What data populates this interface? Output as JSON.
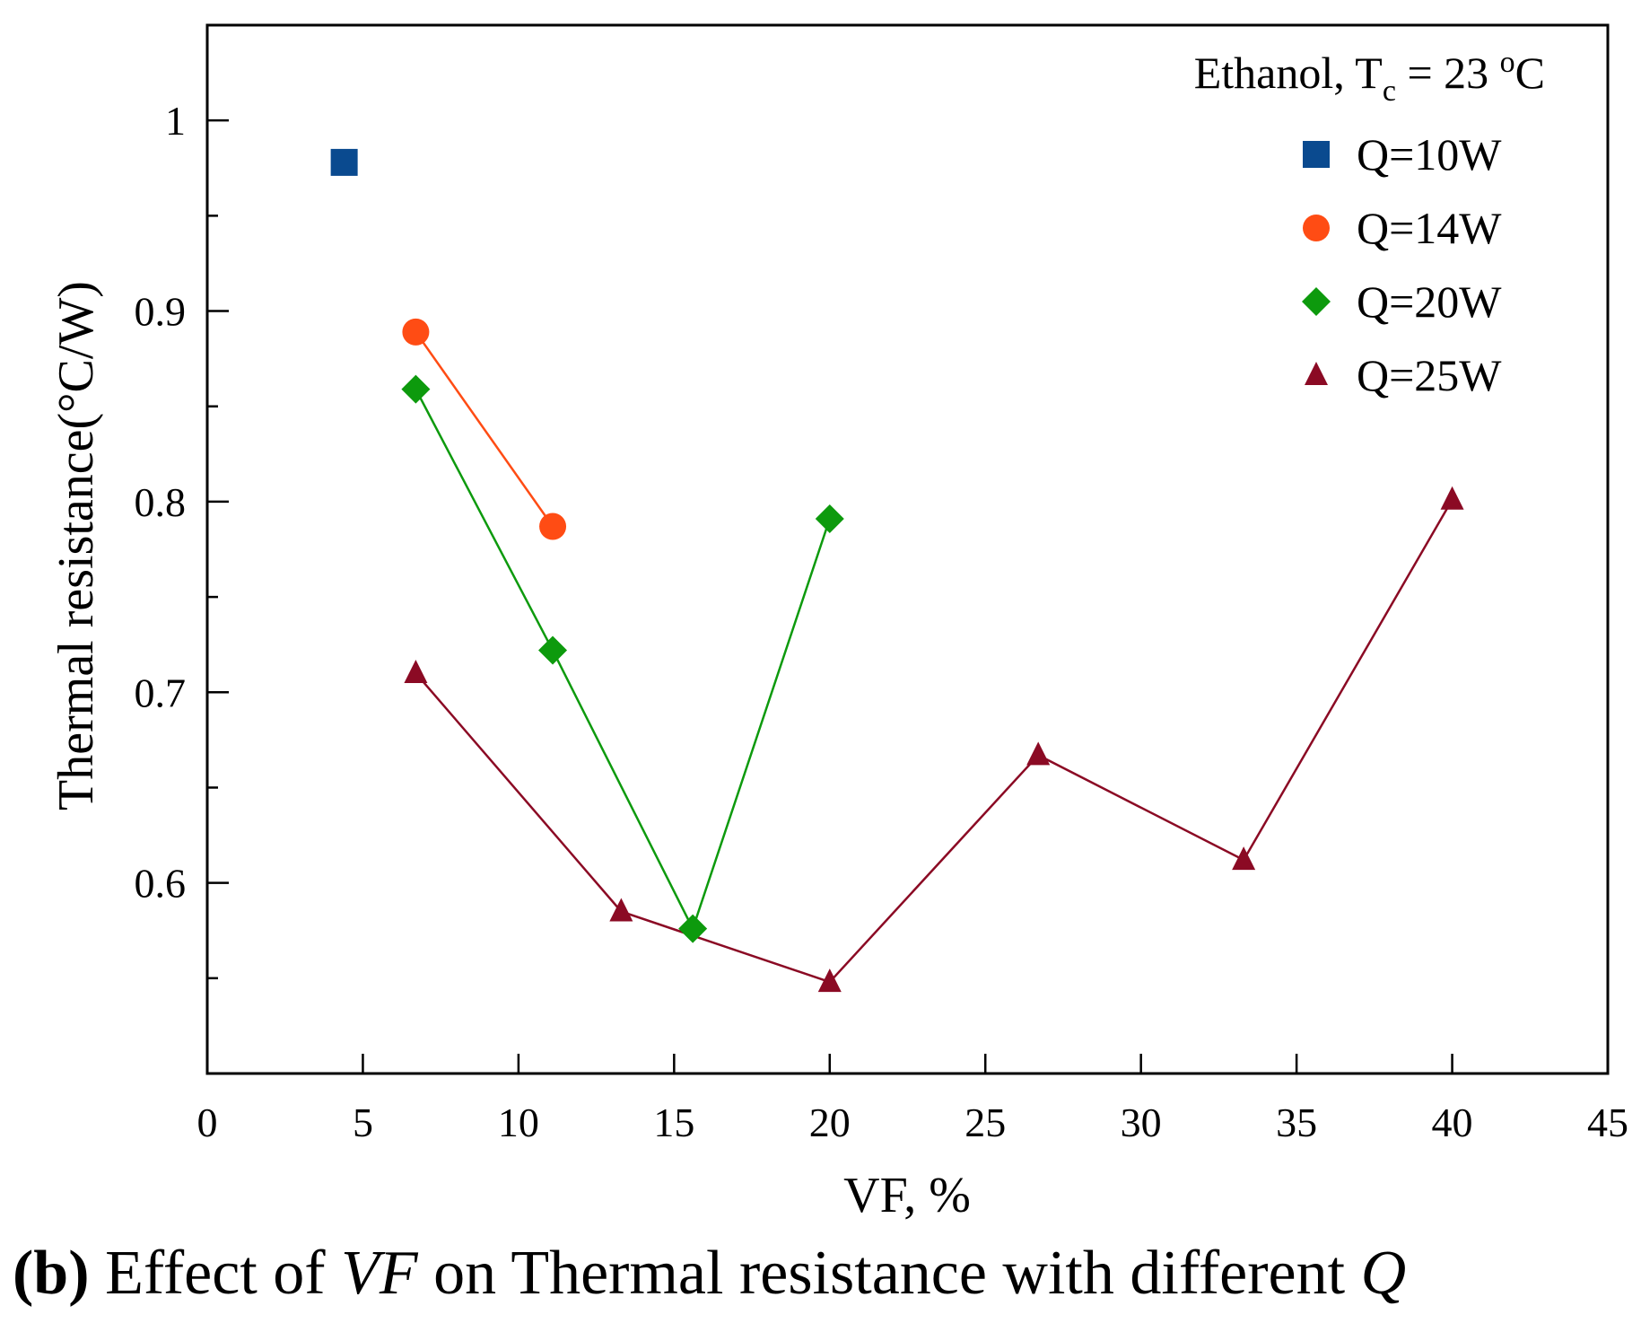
{
  "chart_data": {
    "type": "line",
    "xlabel": "VF, %",
    "ylabel": "Thermal resistance(°C/W)",
    "xlim": [
      0,
      45
    ],
    "ylim": [
      0.5,
      1.05
    ],
    "x_ticks": [
      0,
      5,
      10,
      15,
      20,
      25,
      30,
      35,
      40,
      45
    ],
    "x_tick_labels": [
      "0",
      "5",
      "10",
      "15",
      "20",
      "25",
      "30",
      "35",
      "40",
      "45"
    ],
    "y_major_ticks": [
      0.6,
      0.7,
      0.8,
      0.9,
      1.0
    ],
    "y_tick_labels": [
      "0.6",
      "0.7",
      "0.8",
      "0.9",
      "1"
    ],
    "y_minor_ticks": [
      0.55,
      0.65,
      0.75,
      0.85,
      0.95
    ],
    "grid": false,
    "legend_position": "top-right",
    "annotation": {
      "prefix": "Ethanol, T",
      "subscript": "c",
      "suffix": " = 23 ",
      "superscript": "o",
      "unit": "C"
    },
    "series": [
      {
        "name": "Q=10W",
        "marker": "square",
        "color": "#0a4a8f",
        "x": [
          4.4
        ],
        "y": [
          0.978
        ]
      },
      {
        "name": "Q=14W",
        "marker": "circle",
        "color": "#ff4c14",
        "x": [
          6.7,
          11.1
        ],
        "y": [
          0.889,
          0.787
        ]
      },
      {
        "name": "Q=20W",
        "marker": "diamond",
        "color": "#0d9a0d",
        "x": [
          6.7,
          11.1,
          15.6,
          20.0
        ],
        "y": [
          0.859,
          0.722,
          0.576,
          0.791
        ]
      },
      {
        "name": "Q=25W",
        "marker": "triangle",
        "color": "#8b0a24",
        "x": [
          6.7,
          13.3,
          20.0,
          26.7,
          33.3,
          40.0
        ],
        "y": [
          0.71,
          0.585,
          0.548,
          0.667,
          0.612,
          0.801
        ]
      }
    ]
  },
  "caption": {
    "label": "(b)",
    "text_before": " Effect of ",
    "italic_var": "VF",
    "text_middle": " on Thermal resistance with different ",
    "italic_q": "Q"
  }
}
